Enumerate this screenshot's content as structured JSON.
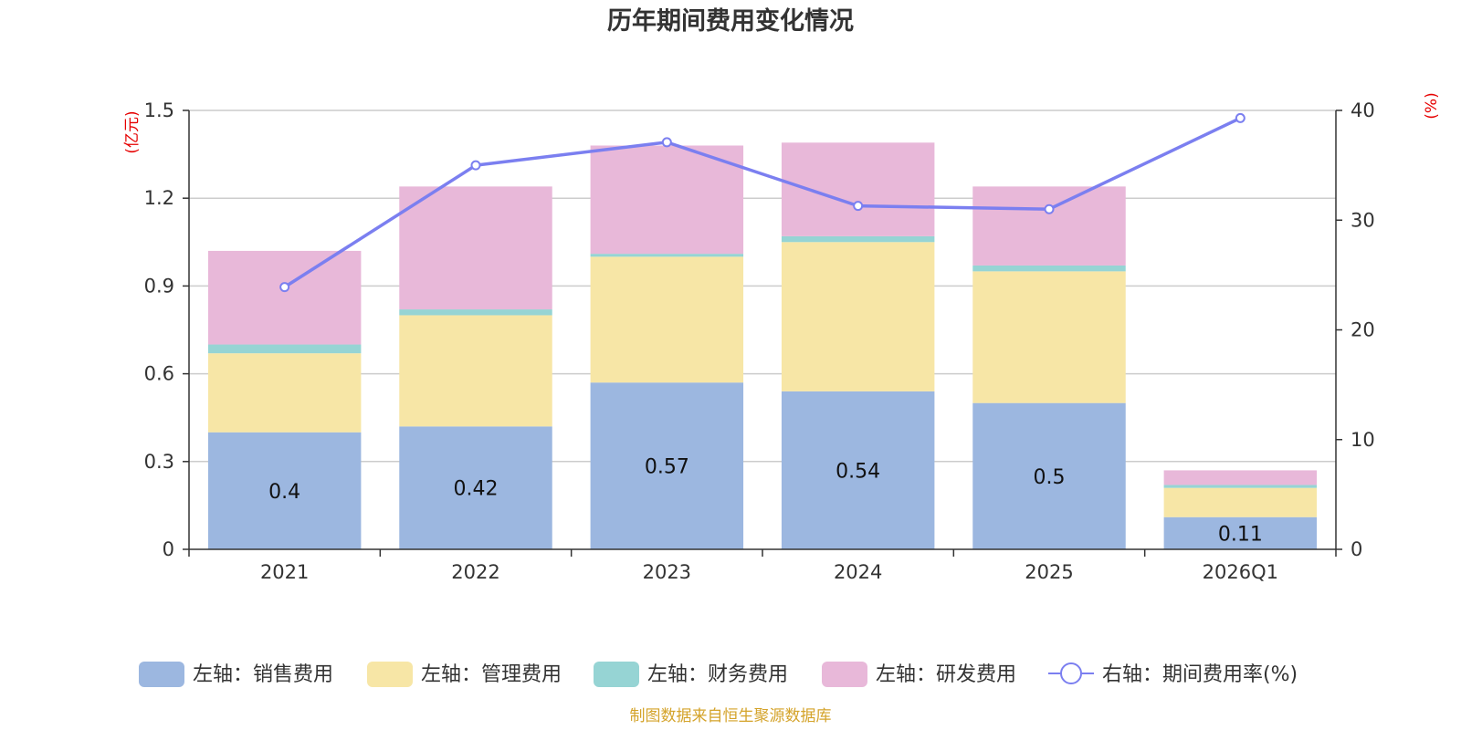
{
  "chart_data": {
    "type": "bar+line",
    "title": "历年期间费用变化情况",
    "categories": [
      "2021",
      "2022",
      "2023",
      "2024",
      "2025",
      "2026Q1"
    ],
    "left_axis": {
      "unit": "(亿元)",
      "ticks": [
        "0",
        "0.3",
        "0.6",
        "0.9",
        "1.2",
        "1.5"
      ],
      "ylim": [
        0,
        1.5
      ]
    },
    "right_axis": {
      "unit": "(%)",
      "ticks": [
        "0",
        "10",
        "20",
        "30",
        "40"
      ],
      "ylim": [
        0,
        40
      ]
    },
    "series": [
      {
        "name": "左轴：销售费用",
        "axis": "left",
        "type": "bar",
        "color": "#9cb7e0",
        "values": [
          0.4,
          0.42,
          0.57,
          0.54,
          0.5,
          0.11
        ],
        "data_labels": [
          "0.4",
          "0.42",
          "0.57",
          "0.54",
          "0.5",
          "0.11"
        ]
      },
      {
        "name": "左轴：管理费用",
        "axis": "left",
        "type": "bar",
        "color": "#f7e6a6",
        "values": [
          0.27,
          0.38,
          0.43,
          0.51,
          0.45,
          0.1
        ]
      },
      {
        "name": "左轴：财务费用",
        "axis": "left",
        "type": "bar",
        "color": "#96d4d4",
        "values": [
          0.03,
          0.02,
          0.01,
          0.02,
          0.02,
          0.01
        ]
      },
      {
        "name": "左轴：研发费用",
        "axis": "left",
        "type": "bar",
        "color": "#e8b8d9",
        "values": [
          0.32,
          0.42,
          0.37,
          0.32,
          0.27,
          0.05
        ]
      },
      {
        "name": "右轴：期间费用率(%)",
        "axis": "right",
        "type": "line",
        "color": "#7b7ff0",
        "values": [
          23.9,
          35.0,
          37.1,
          31.3,
          31.0,
          39.3
        ]
      }
    ],
    "legend_position": "bottom-center",
    "source": "制图数据来自恒生聚源数据库"
  }
}
